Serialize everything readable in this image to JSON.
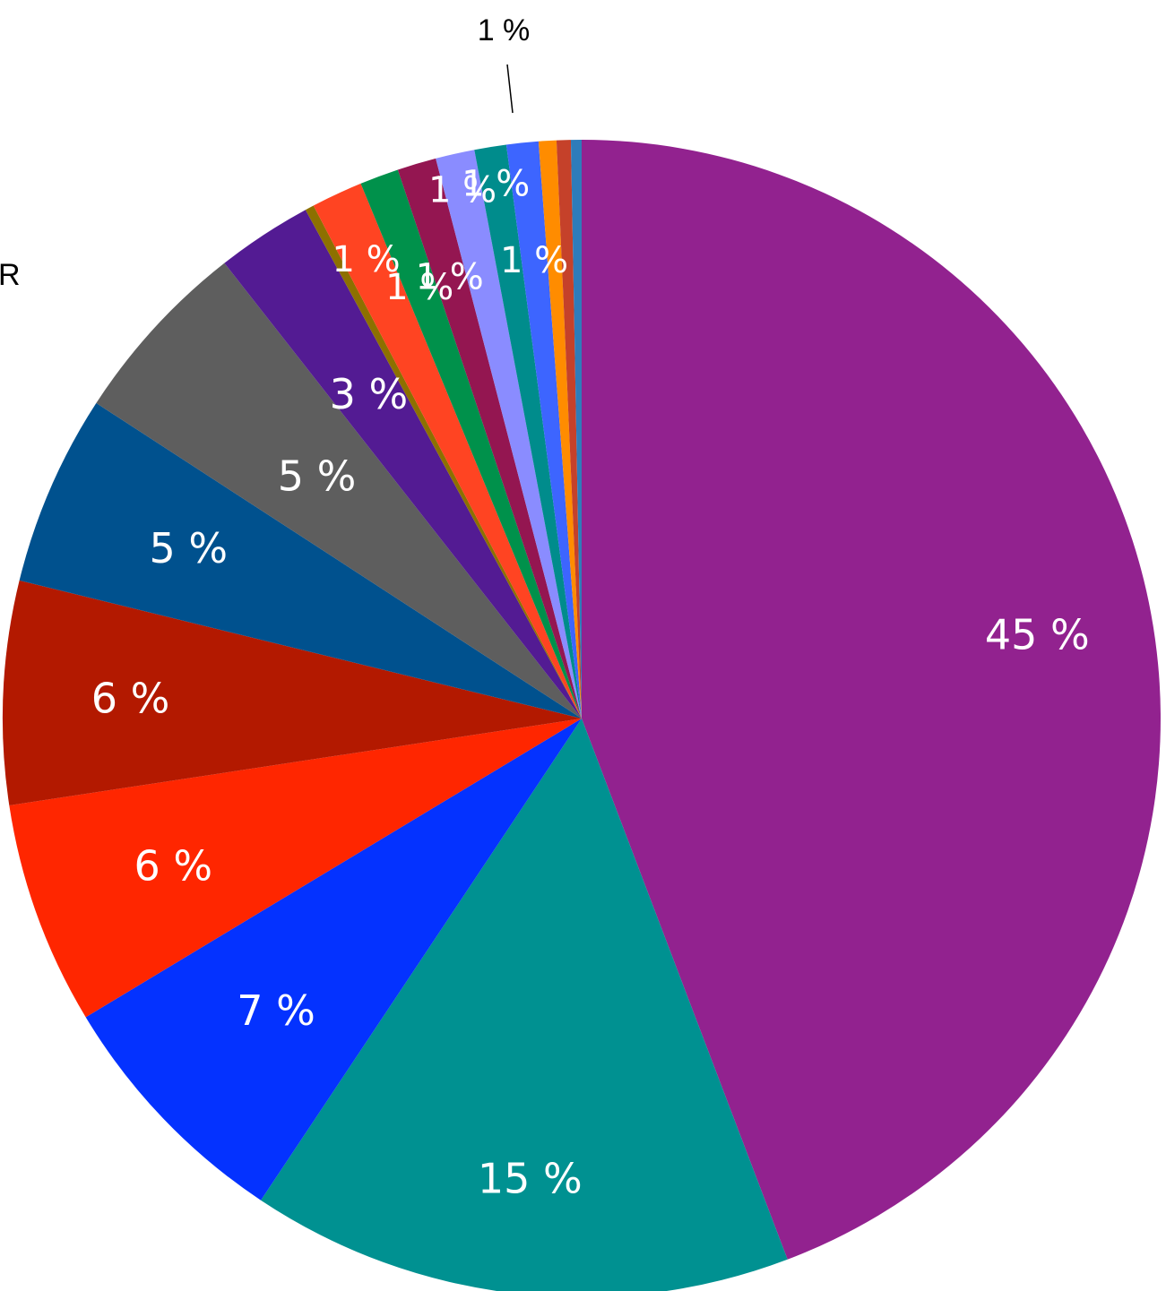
{
  "chart_data": {
    "type": "pie",
    "title": "",
    "start_angle_deg": 0,
    "direction": "clockwise",
    "slices": [
      {
        "value": 44.7,
        "label": "45 %",
        "color": "#92228f"
      },
      {
        "value": 15.3,
        "label": "15 %",
        "color": "#009191"
      },
      {
        "value": 7.1,
        "label": "7 %",
        "color": "#0432ff"
      },
      {
        "value": 6.3,
        "label": "6 %",
        "color": "#ff2600"
      },
      {
        "value": 6.3,
        "label": "6 %",
        "color": "#b31900"
      },
      {
        "value": 5.4,
        "label": "5 %",
        "color": "#00518e"
      },
      {
        "value": 5.3,
        "label": "5 %",
        "color": "#5e5e5e"
      },
      {
        "value": 2.7,
        "label": "3 %",
        "color": "#531b93"
      },
      {
        "value": 0.25,
        "label": "",
        "color": "#8d7000"
      },
      {
        "value": 1.45,
        "label": "1 %",
        "color": "#ff4422"
      },
      {
        "value": 1.1,
        "label": "1 %",
        "color": "#00914b"
      },
      {
        "value": 1.1,
        "label": "1 %",
        "color": "#941651"
      },
      {
        "value": 1.1,
        "label": "1 %",
        "color": "#8a8cff"
      },
      {
        "value": 0.9,
        "label": "1 %",
        "color": "#008c8c"
      },
      {
        "value": 0.9,
        "label": "1 %",
        "color": "#3d65ff"
      },
      {
        "value": 0.5,
        "label": "",
        "color": "#ff8c00"
      },
      {
        "value": 0.4,
        "label": "",
        "color": "#c5412a"
      },
      {
        "value": 0.3,
        "label": "",
        "color": "#2e7cba"
      }
    ],
    "outside_labels": [
      {
        "text": "1 %",
        "slice": 14
      },
      {
        "text": "R",
        "slice": 9
      }
    ]
  }
}
